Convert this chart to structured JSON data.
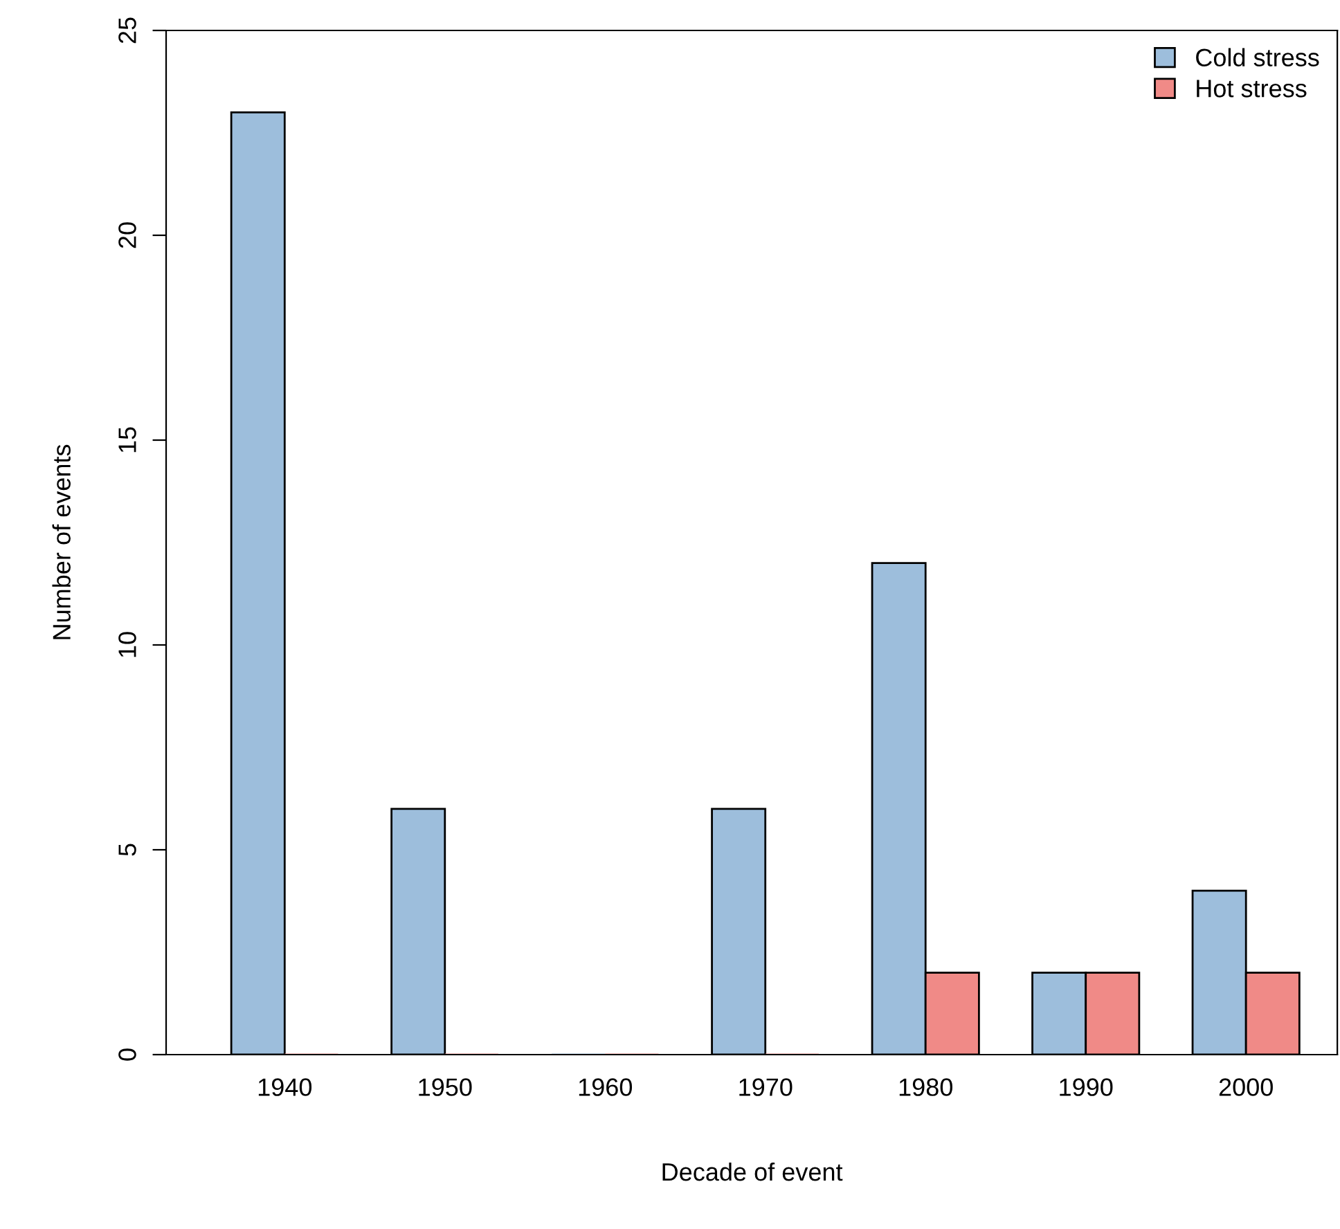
{
  "chart_data": {
    "type": "bar",
    "xlabel": "Decade of event",
    "ylabel": "Number of events",
    "categories": [
      "1940",
      "1950",
      "1960",
      "1970",
      "1980",
      "1990",
      "2000"
    ],
    "series": [
      {
        "name": "Cold stress",
        "color": "#9dbedc",
        "values": [
          23,
          6,
          0,
          6,
          12,
          2,
          4
        ]
      },
      {
        "name": "Hot stress",
        "color": "#f08a87",
        "values": [
          0,
          0,
          0,
          0,
          2,
          2,
          2
        ]
      }
    ],
    "ylim": [
      0,
      25
    ],
    "yticks": [
      0,
      5,
      10,
      15,
      20,
      25
    ],
    "grid": false,
    "legend": "top right"
  }
}
